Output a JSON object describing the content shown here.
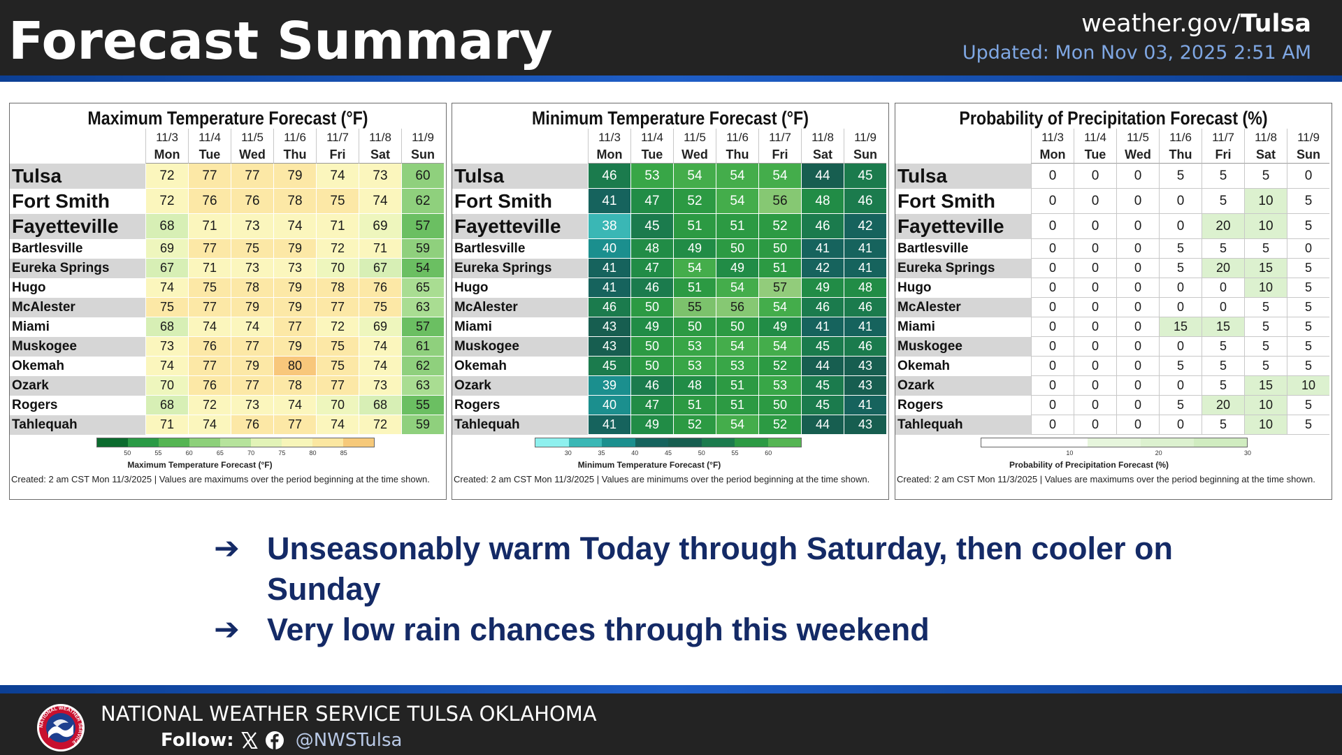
{
  "header": {
    "title": "Forecast Summary",
    "site_prefix": "weather.gov/",
    "site_office": "Tulsa",
    "updated": "Updated: Mon Nov 03, 2025 2:51 AM"
  },
  "dates": [
    "11/3",
    "11/4",
    "11/5",
    "11/6",
    "11/7",
    "11/8",
    "11/9"
  ],
  "days": [
    "Mon",
    "Tue",
    "Wed",
    "Thu",
    "Fri",
    "Sat",
    "Sun"
  ],
  "cities": [
    "Tulsa",
    "Fort Smith",
    "Fayetteville",
    "Bartlesville",
    "Eureka Springs",
    "Hugo",
    "McAlester",
    "Miami",
    "Muskogee",
    "Okemah",
    "Ozark",
    "Rogers",
    "Tahlequah"
  ],
  "panels": {
    "max": {
      "title": "Maximum Temperature Forecast (°F)",
      "legend_label": "Maximum Temperature Forecast (°F)",
      "legend_ticks": [
        "50",
        "55",
        "60",
        "65",
        "70",
        "75",
        "80",
        "85"
      ],
      "footer": "Created: 2 am CST Mon 11/3/2025  |  Values are maximums over the period beginning at the time shown.",
      "values": [
        [
          72,
          77,
          77,
          79,
          74,
          73,
          60
        ],
        [
          72,
          76,
          76,
          78,
          75,
          74,
          62
        ],
        [
          68,
          71,
          73,
          74,
          71,
          69,
          57
        ],
        [
          69,
          77,
          75,
          79,
          72,
          71,
          59
        ],
        [
          67,
          71,
          73,
          73,
          70,
          67,
          54
        ],
        [
          74,
          75,
          78,
          79,
          78,
          76,
          65
        ],
        [
          75,
          77,
          79,
          79,
          77,
          75,
          63
        ],
        [
          68,
          74,
          74,
          77,
          72,
          69,
          57
        ],
        [
          73,
          76,
          77,
          79,
          75,
          74,
          61
        ],
        [
          74,
          77,
          79,
          80,
          75,
          74,
          62
        ],
        [
          70,
          76,
          77,
          78,
          77,
          73,
          63
        ],
        [
          68,
          72,
          73,
          74,
          70,
          68,
          55
        ],
        [
          71,
          74,
          76,
          77,
          74,
          72,
          59
        ]
      ]
    },
    "min": {
      "title": "Minimum Temperature Forecast (°F)",
      "legend_label": "Minimum Temperature Forecast (°F)",
      "legend_ticks": [
        "30",
        "35",
        "40",
        "45",
        "50",
        "55",
        "60"
      ],
      "footer": "Created: 2 am CST Mon 11/3/2025  |  Values are minimums over the period beginning at the time shown.",
      "values": [
        [
          46,
          53,
          54,
          54,
          54,
          44,
          45
        ],
        [
          41,
          47,
          52,
          54,
          56,
          48,
          46
        ],
        [
          38,
          45,
          51,
          51,
          52,
          46,
          42
        ],
        [
          40,
          48,
          49,
          50,
          50,
          41,
          41
        ],
        [
          41,
          47,
          54,
          49,
          51,
          42,
          41
        ],
        [
          41,
          46,
          51,
          54,
          57,
          49,
          48
        ],
        [
          46,
          50,
          55,
          56,
          54,
          46,
          46
        ],
        [
          43,
          49,
          50,
          50,
          49,
          41,
          41
        ],
        [
          43,
          50,
          53,
          54,
          54,
          45,
          46
        ],
        [
          45,
          50,
          53,
          53,
          52,
          44,
          43
        ],
        [
          39,
          46,
          48,
          51,
          53,
          45,
          43
        ],
        [
          40,
          47,
          51,
          51,
          50,
          45,
          41
        ],
        [
          41,
          49,
          52,
          54,
          52,
          44,
          43
        ]
      ]
    },
    "pop": {
      "title": "Probability of Precipitation Forecast (%)",
      "legend_label": "Probability of Precipitation Forecast (%)",
      "legend_ticks": [
        "10",
        "20",
        "30"
      ],
      "footer": "Created: 2 am CST Mon 11/3/2025  |  Values are maximums over the period beginning at the time shown.",
      "values": [
        [
          0,
          0,
          0,
          5,
          5,
          5,
          0
        ],
        [
          0,
          0,
          0,
          0,
          5,
          10,
          5
        ],
        [
          0,
          0,
          0,
          0,
          20,
          10,
          5
        ],
        [
          0,
          0,
          0,
          5,
          5,
          5,
          0
        ],
        [
          0,
          0,
          0,
          5,
          20,
          15,
          5
        ],
        [
          0,
          0,
          0,
          0,
          0,
          10,
          5
        ],
        [
          0,
          0,
          0,
          0,
          0,
          5,
          5
        ],
        [
          0,
          0,
          0,
          15,
          15,
          5,
          5
        ],
        [
          0,
          0,
          0,
          0,
          5,
          5,
          5
        ],
        [
          0,
          0,
          0,
          5,
          5,
          5,
          5
        ],
        [
          0,
          0,
          0,
          0,
          5,
          15,
          10
        ],
        [
          0,
          0,
          0,
          5,
          20,
          10,
          5
        ],
        [
          0,
          0,
          0,
          0,
          5,
          10,
          5
        ]
      ]
    }
  },
  "bullets": [
    "Unseasonably warm Today through Saturday, then cooler on Sunday",
    "Very low rain chances through this weekend"
  ],
  "footer": {
    "org": "NATIONAL WEATHER SERVICE TULSA OKLAHOMA",
    "follow": "Follow:",
    "handle": "@NWSTulsa",
    "logo_text": "NATIONAL WEATHER SERVICE"
  },
  "colors": {
    "header_bg": "#232323",
    "accent_blue": "#1f5ec7",
    "bullet_text": "#142a66",
    "updated_text": "#7fa7e3"
  }
}
